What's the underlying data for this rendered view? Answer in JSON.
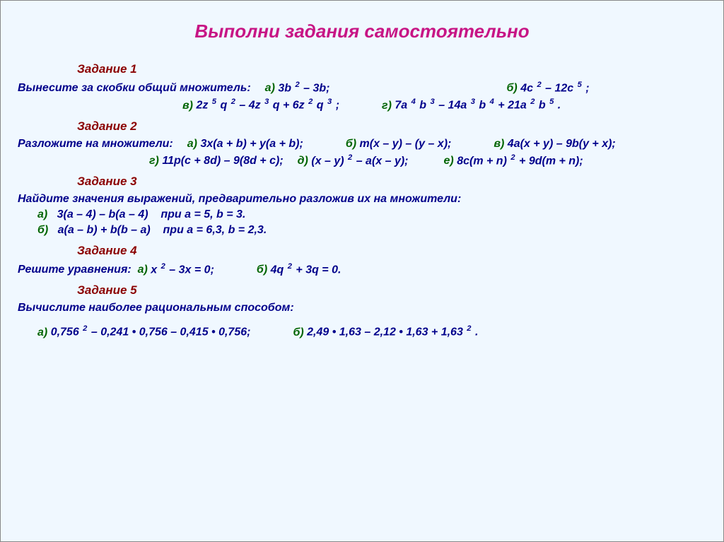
{
  "colors": {
    "background": "#f0f8ff",
    "title": "#c71585",
    "task_head": "#8b0000",
    "prompt": "#00008b",
    "label": "#006400",
    "math": "#00008b",
    "cond": "#00008b"
  },
  "title": "Выполни задания самостоятельно",
  "tasks": {
    "t1": {
      "head": "Задание 1",
      "prompt": "Вынесите за скобки общий множитель:",
      "a_lbl": "а)",
      "a": "3b ² – 3b;",
      "b_lbl": "б)",
      "b": "4c ² – 12c ⁵ ;",
      "v_lbl": "в)",
      "v": "2z ⁵ q ² – 4z ³ q + 6z ² q ³ ;",
      "g_lbl": "г)",
      "g": "7a ⁴ b ³ – 14a ³ b ⁴ + 21a ² b ⁵ ."
    },
    "t2": {
      "head": "Задание 2",
      "prompt": "Разложите на множители:",
      "a_lbl": "а)",
      "a": "3x(a + b) + y(a + b);",
      "b_lbl": "б)",
      "b": "m(x – y) – (y – x);",
      "v_lbl": "в)",
      "v": "4a(x + y) – 9b(y + x);",
      "g_lbl": "г)",
      "g": "11p(c + 8d) – 9(8d + c);",
      "d_lbl": "д)",
      "d": "(x – y) ² – a(x – y);",
      "e_lbl": "е)",
      "e": "8c(m + n) ² + 9d(m + n);"
    },
    "t3": {
      "head": "Задание 3",
      "prompt": "Найдите значения выражений, предварительно разложив их на множители:",
      "a_lbl": "а)",
      "a": "3(a – 4) – b(a – 4)",
      "a_cond": "при a = 5, b = 3.",
      "b_lbl": "б)",
      "b": "a(a – b) + b(b – a)",
      "b_cond": "при a = 6,3, b = 2,3."
    },
    "t4": {
      "head": "Задание 4",
      "prompt": "Решите уравнения:",
      "a_lbl": "а)",
      "a": "x ² – 3x = 0;",
      "b_lbl": "б)",
      "b": "4q ² + 3q = 0."
    },
    "t5": {
      "head": "Задание 5",
      "prompt": "Вычислите наиболее рациональным способом:",
      "a_lbl": "а)",
      "a": "0,756 ² – 0,241 • 0,756 – 0,415 • 0,756;",
      "b_lbl": "б)",
      "b": "2,49 • 1,63 – 2,12 • 1,63 + 1,63 ² ."
    }
  }
}
